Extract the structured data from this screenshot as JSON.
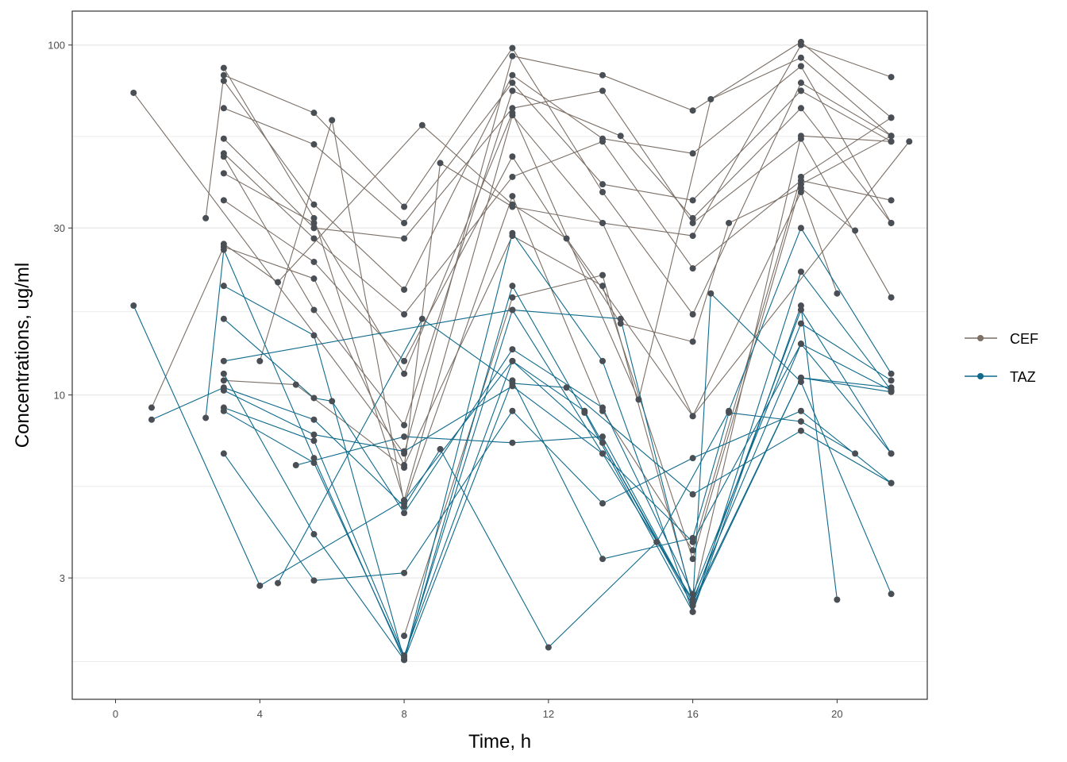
{
  "chart_data": {
    "type": "line",
    "title": "",
    "xlabel": "Time, h",
    "ylabel": "Concentrations, ug/ml",
    "xlim": [
      -1.2,
      22.5
    ],
    "ylim": [
      1.35,
      125
    ],
    "y_scale": "log10",
    "x_ticks": [
      0,
      4,
      8,
      12,
      16,
      20
    ],
    "x_tick_labels": [
      "0",
      "4",
      "8",
      "12",
      "16",
      "20"
    ],
    "y_ticks": [
      3,
      10,
      30,
      100
    ],
    "y_tick_labels": [
      "3",
      "10",
      "30",
      "100"
    ],
    "y_minor_grid": [
      1.73,
      5.48,
      17.3,
      54.8
    ],
    "legend_position": "right",
    "colors": {
      "CEF": "#7b6f66",
      "TAZ": "#0f6a8b",
      "point_fill": "#4a4f55",
      "panel_border": "#333333",
      "grid": "#ebebeb"
    },
    "series": [
      {
        "name": "CEF",
        "subjects": [
          {
            "points": [
              [
                0.5,
                73
              ],
              [
                8,
                6.8
              ],
              [
                11,
                93
              ],
              [
                13.5,
                82
              ],
              [
                16,
                65
              ],
              [
                19,
                102
              ],
              [
                21.5,
                62
              ]
            ]
          },
          {
            "points": [
              [
                1,
                9.2
              ],
              [
                3,
                26.5
              ],
              [
                5.5,
                21.5
              ],
              [
                8,
                6.3
              ],
              [
                11,
                28.5
              ],
              [
                13.5,
                20.5
              ],
              [
                16,
                3.4
              ],
              [
                19,
                40
              ],
              [
                21.5,
                55
              ]
            ]
          },
          {
            "points": [
              [
                2.5,
                32
              ],
              [
                3,
                82
              ],
              [
                5.5,
                64
              ],
              [
                8,
                34.5
              ],
              [
                11,
                98
              ],
              [
                13.5,
                38
              ],
              [
                16,
                17
              ],
              [
                19,
                78
              ],
              [
                21.5,
                55
              ]
            ]
          },
          {
            "points": [
              [
                3,
                86
              ],
              [
                5.5,
                32
              ],
              [
                8,
                5.0
              ],
              [
                11,
                63
              ],
              [
                13.5,
                31
              ],
              [
                16,
                28.5
              ],
              [
                19,
                100
              ],
              [
                21.5,
                81
              ]
            ]
          },
          {
            "points": [
              [
                3,
                79
              ],
              [
                5.5,
                35
              ],
              [
                8,
                20
              ],
              [
                11,
                82
              ],
              [
                13.5,
                54
              ],
              [
                16,
                49
              ],
              [
                19,
                87
              ],
              [
                21.5,
                31
              ]
            ]
          },
          {
            "points": [
              [
                3,
                66
              ],
              [
                5.5,
                52
              ],
              [
                8,
                31
              ],
              [
                11,
                78
              ],
              [
                13.5,
                40
              ],
              [
                16,
                36
              ],
              [
                19,
                74
              ],
              [
                21.5,
                53
              ]
            ]
          },
          {
            "points": [
              [
                3,
                54
              ],
              [
                5.5,
                30
              ],
              [
                8,
                28
              ],
              [
                11,
                66
              ],
              [
                13.5,
                74
              ],
              [
                16,
                31
              ],
              [
                19,
                54
              ],
              [
                21.5,
                19
              ]
            ]
          },
          {
            "points": [
              [
                3,
                49
              ],
              [
                5.5,
                28
              ],
              [
                8,
                17
              ],
              [
                11,
                42
              ],
              [
                13.5,
                53
              ],
              [
                16,
                23
              ],
              [
                19,
                41
              ],
              [
                21.5,
                36
              ]
            ]
          },
          {
            "points": [
              [
                3,
                48
              ],
              [
                5.5,
                17.5
              ],
              [
                8,
                8.2
              ],
              [
                11,
                74
              ],
              [
                14,
                55
              ],
              [
                16,
                32
              ],
              [
                19,
                66
              ],
              [
                21.5,
                31
              ]
            ]
          },
          {
            "points": [
              [
                3,
                43
              ],
              [
                5.5,
                31
              ],
              [
                8,
                11.5
              ],
              [
                11,
                64
              ],
              [
                14.5,
                9.7
              ],
              [
                16.5,
                70
              ],
              [
                19,
                92
              ],
              [
                21.5,
                55
              ]
            ]
          },
          {
            "points": [
              [
                3,
                36
              ],
              [
                5.5,
                24
              ],
              [
                8,
                12.5
              ],
              [
                11,
                48
              ],
              [
                14,
                16
              ],
              [
                16,
                14.2
              ],
              [
                17,
                31
              ],
              [
                19,
                39
              ],
              [
                20.5,
                29.5
              ]
            ]
          },
          {
            "points": [
              [
                3,
                27
              ],
              [
                4.5,
                21
              ],
              [
                8.5,
                59
              ],
              [
                11,
                35
              ],
              [
                12.5,
                28
              ],
              [
                16,
                8.7
              ],
              [
                19,
                38
              ],
              [
                20,
                19.5
              ]
            ]
          },
          {
            "points": [
              [
                3,
                11
              ],
              [
                5,
                10.7
              ],
              [
                8,
                6.2
              ],
              [
                9,
                46
              ],
              [
                11,
                34.5
              ],
              [
                13.5,
                31
              ],
              [
                16,
                8.7
              ],
              [
                22,
                53
              ]
            ]
          },
          {
            "points": [
              [
                4,
                12.5
              ],
              [
                6,
                61
              ],
              [
                8,
                4.9
              ],
              [
                11,
                37
              ],
              [
                13.5,
                9
              ],
              [
                16,
                3.6
              ],
              [
                19,
                42
              ],
              [
                21.5,
                62
              ]
            ]
          },
          {
            "points": [
              [
                8,
                2.05
              ],
              [
                11,
                19
              ],
              [
                13.5,
                22
              ],
              [
                16,
                2.6
              ],
              [
                19,
                55
              ],
              [
                21.5,
                53
              ]
            ]
          }
        ]
      },
      {
        "name": "TAZ",
        "subjects": [
          {
            "points": [
              [
                0.5,
                18
              ],
              [
                4,
                2.85
              ],
              [
                8,
                5.0
              ],
              [
                11,
                12.5
              ],
              [
                13,
                9
              ],
              [
                16,
                2.55
              ],
              [
                19,
                11.2
              ],
              [
                21.5,
                10.5
              ]
            ]
          },
          {
            "points": [
              [
                1,
                8.5
              ],
              [
                3,
                10.5
              ],
              [
                5.5,
                8.5
              ],
              [
                8,
                4.8
              ],
              [
                9,
                7.0
              ],
              [
                12,
                1.9
              ],
              [
                15,
                3.8
              ],
              [
                17,
                9.0
              ],
              [
                19,
                30
              ],
              [
                21.5,
                11.5
              ]
            ]
          },
          {
            "points": [
              [
                2.5,
                8.6
              ],
              [
                3,
                26
              ],
              [
                5.5,
                6.6
              ],
              [
                8,
                1.75
              ],
              [
                11,
                29
              ],
              [
                13.5,
                12.5
              ],
              [
                16,
                2.4
              ],
              [
                19,
                18
              ],
              [
                20,
                2.6
              ]
            ]
          },
          {
            "points": [
              [
                3,
                20.5
              ],
              [
                5.5,
                14.8
              ],
              [
                8,
                1.75
              ],
              [
                11,
                20.5
              ],
              [
                13,
                8.9
              ],
              [
                16,
                2.4
              ],
              [
                19,
                22.5
              ],
              [
                21.5,
                10.3
              ]
            ]
          },
          {
            "points": [
              [
                3,
                16.5
              ],
              [
                5.5,
                9.8
              ],
              [
                6,
                9.6
              ],
              [
                8,
                4.6
              ],
              [
                11,
                13.5
              ],
              [
                13.5,
                9.2
              ],
              [
                16,
                2.7
              ],
              [
                19,
                16
              ],
              [
                21.5,
                11
              ]
            ]
          },
          {
            "points": [
              [
                3,
                12.5
              ],
              [
                11,
                17.5
              ],
              [
                14,
                16.5
              ],
              [
                16,
                2.55
              ],
              [
                19,
                17.5
              ],
              [
                21.5,
                6.8
              ]
            ]
          },
          {
            "points": [
              [
                3,
                11.5
              ],
              [
                5.5,
                4
              ],
              [
                8,
                1.75
              ],
              [
                11,
                11
              ],
              [
                13.5,
                3.4
              ],
              [
                16,
                3.9
              ],
              [
                17,
                8.9
              ],
              [
                19,
                8.4
              ],
              [
                20.5,
                6.8
              ]
            ]
          },
          {
            "points": [
              [
                3,
                9.2
              ],
              [
                5.5,
                7.4
              ],
              [
                8,
                1.8
              ],
              [
                11,
                12.5
              ],
              [
                13.5,
                7.3
              ],
              [
                16,
                2.5
              ],
              [
                19,
                11.2
              ],
              [
                21.5,
                10.2
              ]
            ]
          },
          {
            "points": [
              [
                3,
                9.0
              ],
              [
                5.5,
                6.4
              ],
              [
                8,
                1.78
              ],
              [
                11,
                17.5
              ],
              [
                13.5,
                6.8
              ],
              [
                16,
                2.6
              ],
              [
                19,
                14
              ],
              [
                21.5,
                10.3
              ]
            ]
          },
          {
            "points": [
              [
                3,
                10.3
              ],
              [
                5.5,
                7.7
              ],
              [
                8,
                6.9
              ],
              [
                11,
                10.6
              ],
              [
                13.5,
                6.8
              ],
              [
                16,
                3.8
              ],
              [
                19,
                14
              ],
              [
                21.5,
                6.8
              ]
            ]
          },
          {
            "points": [
              [
                3,
                6.8
              ],
              [
                5.5,
                2.95
              ],
              [
                8,
                3.1
              ],
              [
                11,
                9.0
              ],
              [
                13.5,
                4.9
              ],
              [
                16,
                6.6
              ],
              [
                19,
                9.0
              ],
              [
                21.5,
                5.6
              ]
            ]
          },
          {
            "points": [
              [
                4.5,
                2.9
              ],
              [
                8.5,
                16.5
              ],
              [
                11,
                10.8
              ],
              [
                12.5,
                10.5
              ],
              [
                16,
                5.2
              ],
              [
                19,
                7.9
              ],
              [
                21.5,
                5.6
              ]
            ]
          },
          {
            "points": [
              [
                5,
                6.3
              ],
              [
                8,
                7.6
              ],
              [
                11,
                7.3
              ],
              [
                13.5,
                7.6
              ],
              [
                16,
                2.55
              ],
              [
                16.5,
                19.5
              ],
              [
                19,
                10.9
              ],
              [
                21.5,
                2.7
              ]
            ]
          }
        ]
      }
    ]
  }
}
